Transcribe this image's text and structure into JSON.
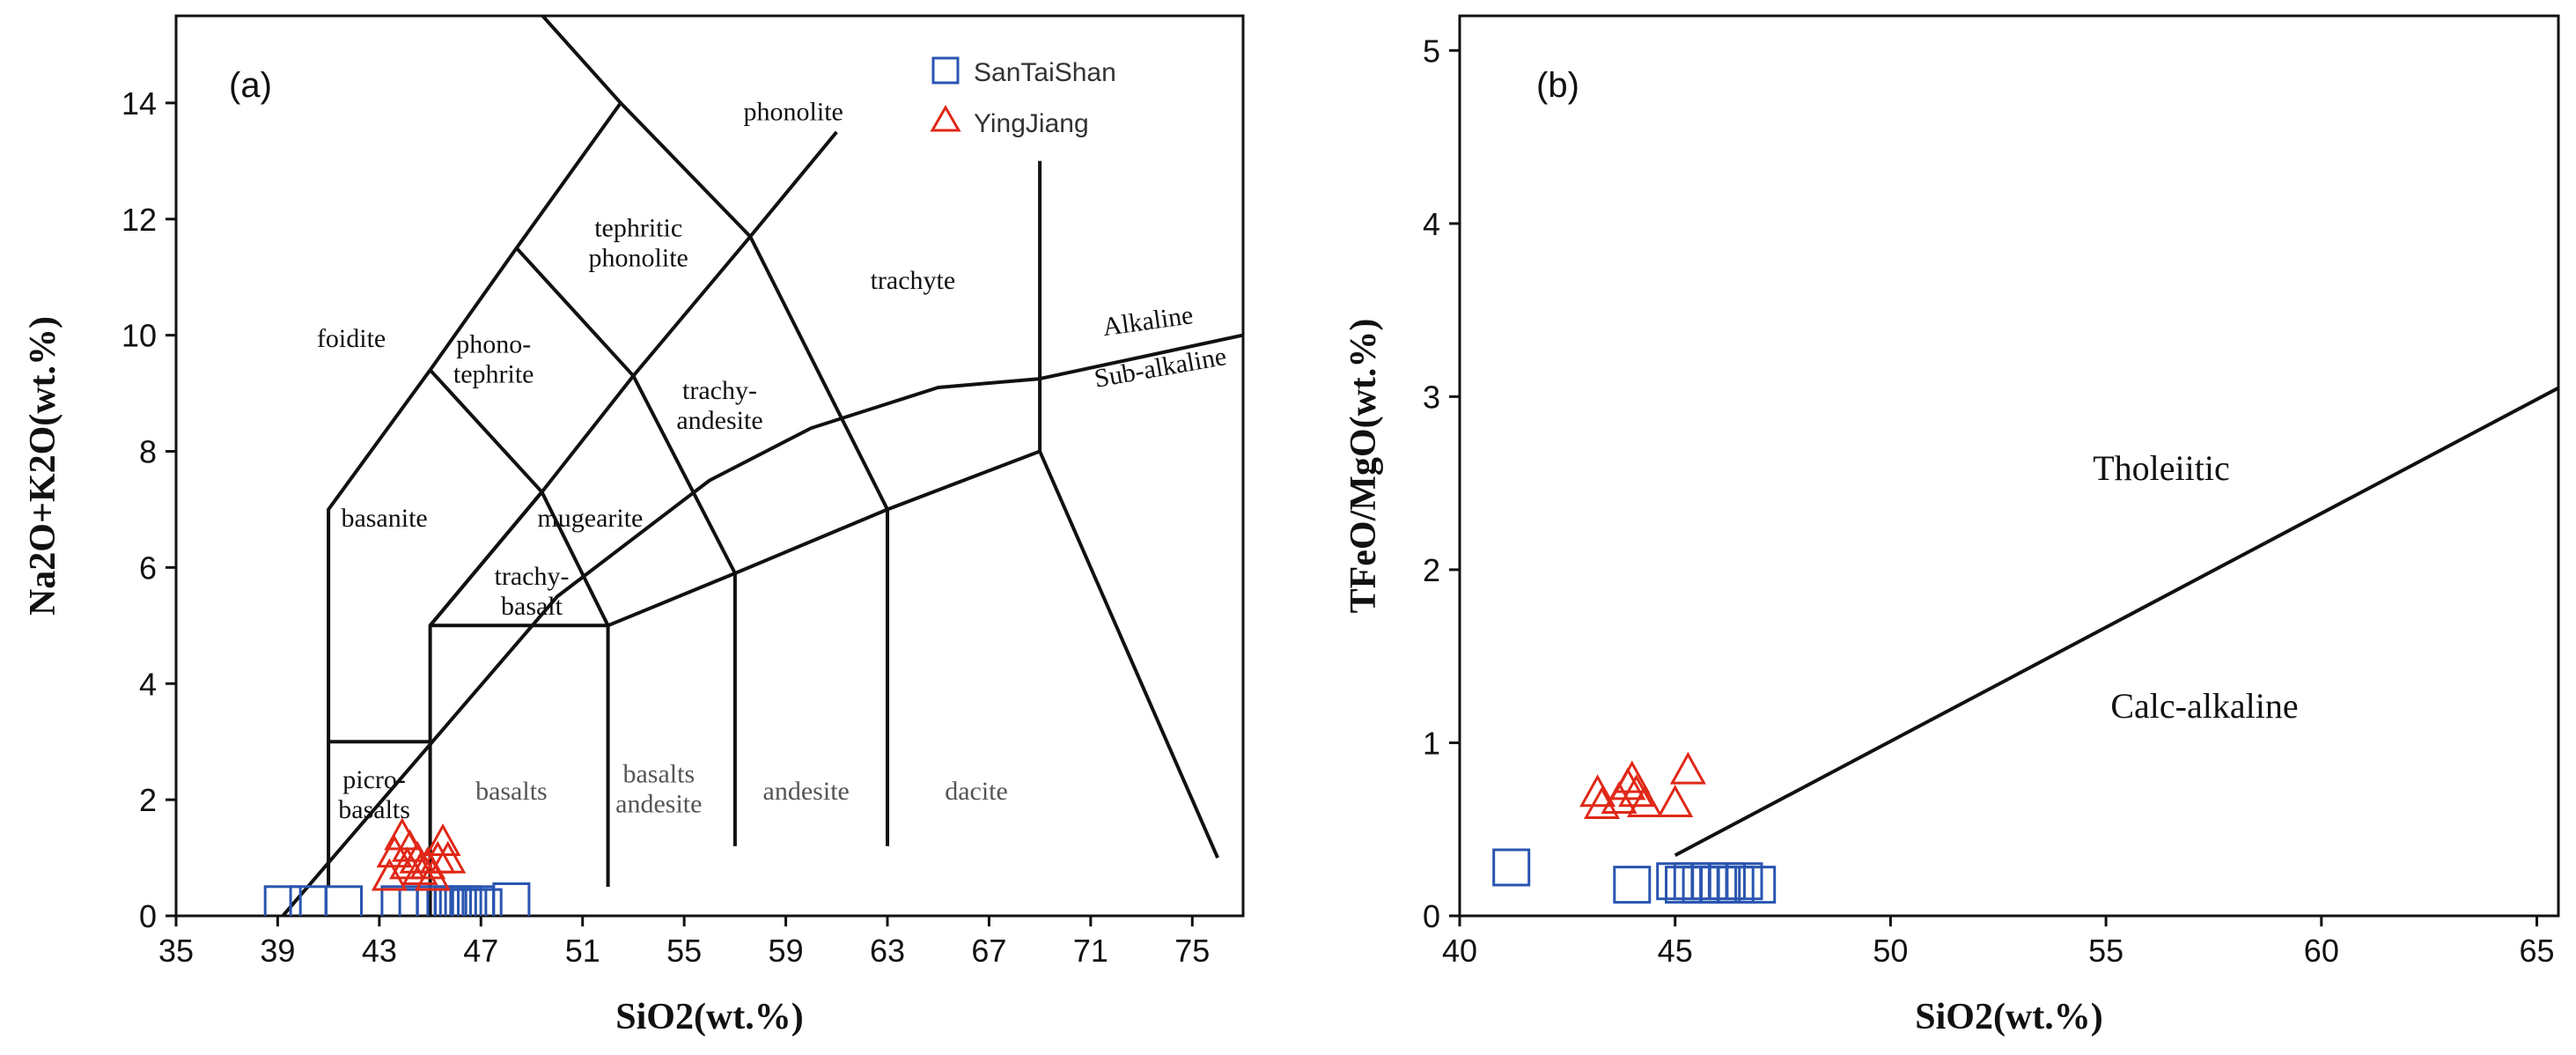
{
  "colors": {
    "santaishan": "#2a55b0",
    "yingjiang": "#e02818",
    "axis": "#111111"
  },
  "chart_data": [
    {
      "panel": "(a)",
      "type": "scatter",
      "title": "",
      "xlabel": "SiO2(wt.%)",
      "ylabel": "Na2O+K2O(wt.%)",
      "xlim": [
        35,
        77
      ],
      "ylim": [
        0,
        15.5
      ],
      "x_ticks": [
        "35",
        "39",
        "43",
        "47",
        "51",
        "55",
        "59",
        "63",
        "67",
        "71",
        "75"
      ],
      "y_ticks": [
        "0",
        "2",
        "4",
        "6",
        "8",
        "10",
        "12",
        "14"
      ],
      "legend": [
        {
          "name": "SanTaiShan",
          "marker": "square"
        },
        {
          "name": "YingJiang",
          "marker": "triangle"
        }
      ],
      "fields": [
        {
          "lines": [
            "foidite"
          ],
          "x": 41.9,
          "y": 9.8
        },
        {
          "lines": [
            "basanite"
          ],
          "x": 43.2,
          "y": 6.7
        },
        {
          "lines": [
            "phono-",
            "tephrite"
          ],
          "x": 47.5,
          "y": 9.7
        },
        {
          "lines": [
            "tephritic",
            "phonolite"
          ],
          "x": 53.2,
          "y": 11.7
        },
        {
          "lines": [
            "phonolite"
          ],
          "x": 59.3,
          "y": 13.7
        },
        {
          "lines": [
            "trachyte"
          ],
          "x": 64.0,
          "y": 10.8
        },
        {
          "lines": [
            "trachy-",
            "andesite"
          ],
          "x": 56.4,
          "y": 8.9
        },
        {
          "lines": [
            "mugearite"
          ],
          "x": 51.3,
          "y": 6.7
        },
        {
          "lines": [
            "trachy-",
            "basalt"
          ],
          "x": 49.0,
          "y": 5.7
        },
        {
          "lines": [
            "picro-",
            "basalts"
          ],
          "x": 42.8,
          "y": 2.2
        },
        {
          "lines": [
            "basalts"
          ],
          "x": 48.2,
          "y": 2.0
        },
        {
          "lines": [
            "basalts",
            "andesite"
          ],
          "x": 54.0,
          "y": 2.3
        },
        {
          "lines": [
            "andesite"
          ],
          "x": 59.8,
          "y": 2.0
        },
        {
          "lines": [
            "dacite"
          ],
          "x": 66.5,
          "y": 2.0
        }
      ],
      "alkaline_labels": {
        "alkaline": "Alkaline",
        "subalkaline": "Sub-alkaline"
      },
      "boundaries": [
        [
          [
            41,
            0.5
          ],
          [
            41,
            7
          ],
          [
            45,
            9.4
          ],
          [
            48.4,
            11.5
          ],
          [
            52.5,
            14
          ],
          [
            48.4,
            16
          ]
        ],
        [
          [
            41,
            3
          ],
          [
            45,
            3
          ]
        ],
        [
          [
            45,
            0
          ],
          [
            45,
            5
          ],
          [
            52,
            5
          ],
          [
            52,
            0.5
          ]
        ],
        [
          [
            45,
            5
          ],
          [
            49.4,
            7.3
          ],
          [
            53,
            9.3
          ],
          [
            57.6,
            11.7
          ],
          [
            61,
            13.5
          ]
        ],
        [
          [
            45,
            9.4
          ],
          [
            49.4,
            7.3
          ],
          [
            52,
            5
          ]
        ],
        [
          [
            48.4,
            11.5
          ],
          [
            53,
            9.3
          ],
          [
            57,
            5.9
          ],
          [
            57,
            1.2
          ]
        ],
        [
          [
            52.5,
            14
          ],
          [
            57.6,
            11.7
          ],
          [
            63,
            7
          ],
          [
            63,
            1.2
          ]
        ],
        [
          [
            45,
            5
          ],
          [
            49.4,
            7.3
          ]
        ],
        [
          [
            52,
            5
          ],
          [
            57,
            5.9
          ],
          [
            63,
            7
          ],
          [
            69,
            8
          ],
          [
            69,
            13
          ]
        ],
        [
          [
            69,
            8
          ],
          [
            76,
            1
          ]
        ],
        [
          [
            39.2,
            0
          ],
          [
            50,
            5.5
          ],
          [
            56,
            7.5
          ],
          [
            60,
            8.4
          ],
          [
            65,
            9.1
          ],
          [
            69,
            9.25
          ],
          [
            77,
            10
          ]
        ]
      ],
      "series": [
        {
          "name": "SanTaiShan",
          "marker": "square",
          "points": [
            [
              39.2,
              0.2
            ],
            [
              40.2,
              0.2
            ],
            [
              41.6,
              0.2
            ],
            [
              43.8,
              0.2
            ],
            [
              44.5,
              0.15
            ],
            [
              45.2,
              0.2
            ],
            [
              45.6,
              0.15
            ],
            [
              45.9,
              0.2
            ],
            [
              46.1,
              0.15
            ],
            [
              46.3,
              0.2
            ],
            [
              46.5,
              0.15
            ],
            [
              46.8,
              0.2
            ],
            [
              47.1,
              0.15
            ],
            [
              48.2,
              0.25
            ]
          ]
        },
        {
          "name": "YingJiang",
          "marker": "triangle",
          "points": [
            [
              43.4,
              0.7
            ],
            [
              43.6,
              1.1
            ],
            [
              43.9,
              1.4
            ],
            [
              44.1,
              0.9
            ],
            [
              44.2,
              1.2
            ],
            [
              44.5,
              1.0
            ],
            [
              44.6,
              0.8
            ],
            [
              44.9,
              0.9
            ],
            [
              45.1,
              0.7
            ],
            [
              45.3,
              1.0
            ],
            [
              45.5,
              1.3
            ],
            [
              45.7,
              1.0
            ]
          ]
        }
      ]
    },
    {
      "panel": "(b)",
      "type": "scatter",
      "title": "",
      "xlabel": "SiO2(wt.%)",
      "ylabel": "TFeO/MgO(wt.%)",
      "xlim": [
        40,
        65.5
      ],
      "ylim": [
        0,
        5.2
      ],
      "x_ticks": [
        "40",
        "45",
        "50",
        "55",
        "60",
        "65"
      ],
      "y_ticks": [
        "0",
        "1",
        "2",
        "3",
        "4",
        "5"
      ],
      "regions": {
        "upper": "Tholeiitic",
        "lower": "Calc-alkaline"
      },
      "divider": [
        [
          45,
          0.35
        ],
        [
          65.5,
          3.05
        ]
      ],
      "series": [
        {
          "name": "SanTaiShan",
          "marker": "square",
          "points": [
            [
              41.2,
              0.28
            ],
            [
              44.0,
              0.18
            ],
            [
              45.0,
              0.2
            ],
            [
              45.2,
              0.18
            ],
            [
              45.4,
              0.2
            ],
            [
              45.6,
              0.18
            ],
            [
              45.8,
              0.2
            ],
            [
              46.0,
              0.18
            ],
            [
              46.2,
              0.2
            ],
            [
              46.4,
              0.18
            ],
            [
              46.6,
              0.2
            ],
            [
              46.9,
              0.18
            ]
          ]
        },
        {
          "name": "YingJiang",
          "marker": "triangle",
          "points": [
            [
              43.2,
              0.72
            ],
            [
              43.3,
              0.65
            ],
            [
              43.7,
              0.68
            ],
            [
              43.9,
              0.76
            ],
            [
              44.0,
              0.8
            ],
            [
              44.1,
              0.72
            ],
            [
              44.3,
              0.66
            ],
            [
              45.0,
              0.66
            ],
            [
              45.3,
              0.85
            ]
          ]
        }
      ]
    }
  ]
}
